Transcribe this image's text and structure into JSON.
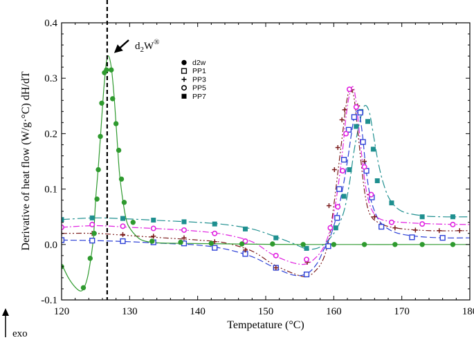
{
  "chart_data": {
    "type": "line",
    "xlabel": "Tempetature (°C)",
    "ylabel": "Derivative of heat flow (W/g·°C) dH/dT",
    "xlim": [
      120,
      180
    ],
    "ylim": [
      -0.1,
      0.4
    ],
    "xticks": [
      120,
      130,
      140,
      150,
      160,
      170,
      180
    ],
    "yticks": [
      -0.1,
      0.0,
      0.1,
      0.2,
      0.3,
      0.4
    ],
    "ytick_labels": [
      "-0.1",
      "0.0",
      "0.1",
      "0.2",
      "0.3",
      "0.4"
    ],
    "legend_position": "top-center",
    "vertical_reference_x": 126.7,
    "annotation": {
      "text_main": "d",
      "text_sub": "2",
      "text_rest": "W",
      "text_sup": "®",
      "points_to_x": 126.7,
      "points_to_y": 0.338
    },
    "corner_label": "exo",
    "series": [
      {
        "name": "d2w",
        "color": "#2e9a2e",
        "marker": "filled-circle",
        "dash": "solid",
        "curve": [
          [
            120,
            -0.035
          ],
          [
            121,
            -0.06
          ],
          [
            122,
            -0.077
          ],
          [
            122.8,
            -0.084
          ],
          [
            123.3,
            -0.078
          ],
          [
            123.8,
            -0.06
          ],
          [
            124.3,
            -0.025
          ],
          [
            124.7,
            0.015
          ],
          [
            125,
            0.08
          ],
          [
            125.4,
            0.14
          ],
          [
            125.8,
            0.21
          ],
          [
            126.2,
            0.28
          ],
          [
            126.6,
            0.33
          ],
          [
            126.9,
            0.34
          ],
          [
            127.3,
            0.32
          ],
          [
            127.7,
            0.27
          ],
          [
            128.1,
            0.2
          ],
          [
            128.5,
            0.13
          ],
          [
            129,
            0.08
          ],
          [
            129.5,
            0.045
          ],
          [
            130,
            0.03
          ],
          [
            131,
            0.015
          ],
          [
            132,
            0.007
          ],
          [
            134,
            0.003
          ],
          [
            138,
            0.002
          ],
          [
            145,
            0.001
          ],
          [
            155,
            0.0
          ],
          [
            180,
            0.0
          ]
        ],
        "markers": [
          [
            120,
            -0.04
          ],
          [
            123.2,
            -0.078
          ],
          [
            124.2,
            -0.025
          ],
          [
            124.8,
            0.02
          ],
          [
            125.2,
            0.082
          ],
          [
            125.4,
            0.135
          ],
          [
            125.7,
            0.195
          ],
          [
            125.9,
            0.255
          ],
          [
            126.3,
            0.31
          ],
          [
            126.6,
            0.315
          ],
          [
            127.3,
            0.315
          ],
          [
            127.5,
            0.263
          ],
          [
            128,
            0.218
          ],
          [
            128.4,
            0.17
          ],
          [
            128.8,
            0.118
          ],
          [
            129.2,
            0.076
          ],
          [
            130.5,
            0.04
          ],
          [
            133.3,
            0.006
          ],
          [
            137.5,
            0.004
          ],
          [
            142,
            0.002
          ],
          [
            146.5,
            0.001
          ],
          [
            151,
            0.001
          ],
          [
            155.5,
            0.0
          ],
          [
            160,
            0.0
          ],
          [
            164.5,
            0.0
          ],
          [
            169,
            0.0
          ],
          [
            173,
            0.0
          ],
          [
            177.5,
            0.0
          ]
        ]
      },
      {
        "name": "PP1",
        "color": "#2b3fd6",
        "marker": "open-square",
        "dash": "long-dash",
        "curve": [
          [
            120,
            0.008
          ],
          [
            125,
            0.007
          ],
          [
            130,
            0.005
          ],
          [
            135,
            0.002
          ],
          [
            140,
            -0.001
          ],
          [
            144,
            -0.008
          ],
          [
            148,
            -0.022
          ],
          [
            151,
            -0.04
          ],
          [
            154,
            -0.055
          ],
          [
            156,
            -0.053
          ],
          [
            157.5,
            -0.035
          ],
          [
            158.5,
            -0.01
          ],
          [
            159.5,
            0.015
          ],
          [
            160.5,
            0.055
          ],
          [
            161.3,
            0.1
          ],
          [
            162,
            0.15
          ],
          [
            162.6,
            0.2
          ],
          [
            163.1,
            0.235
          ],
          [
            163.7,
            0.238
          ],
          [
            164.2,
            0.2
          ],
          [
            164.7,
            0.14
          ],
          [
            165.3,
            0.09
          ],
          [
            166,
            0.06
          ],
          [
            167,
            0.038
          ],
          [
            169,
            0.022
          ],
          [
            172,
            0.015
          ],
          [
            176,
            0.012
          ],
          [
            180,
            0.012
          ]
        ],
        "markers": [
          [
            120,
            0.008
          ],
          [
            124.5,
            0.007
          ],
          [
            129,
            0.006
          ],
          [
            133.5,
            0.004
          ],
          [
            138,
            0.002
          ],
          [
            142.5,
            -0.006
          ],
          [
            147,
            -0.017
          ],
          [
            151.5,
            -0.042
          ],
          [
            156,
            -0.054
          ],
          [
            159.2,
            -0.003
          ],
          [
            160.5,
            0.048
          ],
          [
            160.8,
            0.1
          ],
          [
            161.5,
            0.153
          ],
          [
            162.2,
            0.207
          ],
          [
            163,
            0.23
          ],
          [
            163.9,
            0.238
          ],
          [
            164.3,
            0.185
          ],
          [
            164.8,
            0.133
          ],
          [
            165.6,
            0.085
          ],
          [
            167,
            0.032
          ],
          [
            171.5,
            0.013
          ],
          [
            176,
            0.012
          ]
        ]
      },
      {
        "name": "PP3",
        "color": "#7a1a1a",
        "marker": "plus",
        "dash": "dash-dot-dot",
        "curve": [
          [
            120,
            0.02
          ],
          [
            125,
            0.02
          ],
          [
            130,
            0.016
          ],
          [
            135,
            0.012
          ],
          [
            140,
            0.008
          ],
          [
            144,
            0.003
          ],
          [
            148,
            -0.012
          ],
          [
            151,
            -0.035
          ],
          [
            154,
            -0.052
          ],
          [
            156,
            -0.058
          ],
          [
            157.5,
            -0.045
          ],
          [
            158.5,
            -0.025
          ],
          [
            159.3,
            0.01
          ],
          [
            160,
            0.07
          ],
          [
            160.7,
            0.14
          ],
          [
            161.3,
            0.2
          ],
          [
            161.8,
            0.25
          ],
          [
            162.3,
            0.279
          ],
          [
            162.9,
            0.27
          ],
          [
            163.4,
            0.22
          ],
          [
            164,
            0.15
          ],
          [
            164.6,
            0.09
          ],
          [
            165.3,
            0.055
          ],
          [
            166.5,
            0.04
          ],
          [
            169,
            0.03
          ],
          [
            174,
            0.025
          ],
          [
            180,
            0.025
          ]
        ],
        "markers": [
          [
            120,
            0.02
          ],
          [
            124.5,
            0.02
          ],
          [
            129,
            0.018
          ],
          [
            133.5,
            0.015
          ],
          [
            138,
            0.012
          ],
          [
            142.5,
            0.005
          ],
          [
            147,
            -0.01
          ],
          [
            151.5,
            -0.042
          ],
          [
            156.1,
            -0.032
          ],
          [
            159.3,
            0.07
          ],
          [
            160.1,
            0.135
          ],
          [
            160.6,
            0.175
          ],
          [
            161.2,
            0.225
          ],
          [
            161.6,
            0.243
          ],
          [
            162.6,
            0.279
          ],
          [
            163.5,
            0.25
          ],
          [
            164.5,
            0.15
          ],
          [
            165.3,
            0.09
          ],
          [
            166,
            0.05
          ],
          [
            169,
            0.03
          ],
          [
            172,
            0.026
          ],
          [
            175.5,
            0.025
          ],
          [
            178.5,
            0.025
          ]
        ]
      },
      {
        "name": "PP5",
        "color": "#e020e0",
        "marker": "open-circle",
        "dash": "dash-dot",
        "curve": [
          [
            120,
            0.031
          ],
          [
            125,
            0.034
          ],
          [
            130,
            0.031
          ],
          [
            135,
            0.028
          ],
          [
            140,
            0.024
          ],
          [
            144,
            0.018
          ],
          [
            148,
            0.005
          ],
          [
            151,
            -0.018
          ],
          [
            154,
            -0.033
          ],
          [
            156,
            -0.035
          ],
          [
            157.5,
            -0.022
          ],
          [
            158.5,
            -0.005
          ],
          [
            159.3,
            0.02
          ],
          [
            160,
            0.055
          ],
          [
            160.7,
            0.11
          ],
          [
            161.3,
            0.17
          ],
          [
            161.8,
            0.23
          ],
          [
            162.3,
            0.27
          ],
          [
            162.8,
            0.285
          ],
          [
            163.2,
            0.265
          ],
          [
            163.7,
            0.21
          ],
          [
            164.3,
            0.14
          ],
          [
            164.9,
            0.09
          ],
          [
            165.7,
            0.06
          ],
          [
            167,
            0.045
          ],
          [
            170,
            0.04
          ],
          [
            175,
            0.037
          ],
          [
            180,
            0.036
          ]
        ],
        "markers": [
          [
            120,
            0.031
          ],
          [
            124.5,
            0.036
          ],
          [
            129,
            0.033
          ],
          [
            133.5,
            0.029
          ],
          [
            138,
            0.026
          ],
          [
            142.5,
            0.02
          ],
          [
            147,
            0.006
          ],
          [
            151.5,
            -0.02
          ],
          [
            156,
            -0.027
          ],
          [
            159.5,
            0.03
          ],
          [
            160.6,
            0.068
          ],
          [
            161.3,
            0.133
          ],
          [
            161.8,
            0.2
          ],
          [
            162.3,
            0.28
          ],
          [
            163.3,
            0.248
          ],
          [
            164.5,
            0.14
          ],
          [
            165.5,
            0.09
          ],
          [
            168.5,
            0.04
          ],
          [
            173,
            0.037
          ],
          [
            177.5,
            0.036
          ]
        ]
      },
      {
        "name": "PP7",
        "color": "#1e8f8f",
        "marker": "filled-square",
        "dash": "long-dash-dot",
        "curve": [
          [
            120,
            0.045
          ],
          [
            125,
            0.048
          ],
          [
            130,
            0.046
          ],
          [
            135,
            0.043
          ],
          [
            140,
            0.04
          ],
          [
            144,
            0.036
          ],
          [
            148,
            0.028
          ],
          [
            151,
            0.016
          ],
          [
            154,
            0.002
          ],
          [
            156,
            -0.008
          ],
          [
            157.5,
            -0.007
          ],
          [
            158.5,
            0.0
          ],
          [
            159.5,
            0.012
          ],
          [
            160.5,
            0.03
          ],
          [
            161.5,
            0.06
          ],
          [
            162.3,
            0.11
          ],
          [
            163,
            0.17
          ],
          [
            163.8,
            0.22
          ],
          [
            164.5,
            0.25
          ],
          [
            165.2,
            0.24
          ],
          [
            165.8,
            0.2
          ],
          [
            166.5,
            0.15
          ],
          [
            167.3,
            0.11
          ],
          [
            168.3,
            0.08
          ],
          [
            170,
            0.06
          ],
          [
            173,
            0.052
          ],
          [
            176,
            0.05
          ],
          [
            180,
            0.05
          ]
        ],
        "markers": [
          [
            120,
            0.045
          ],
          [
            124.5,
            0.048
          ],
          [
            129,
            0.047
          ],
          [
            133.5,
            0.044
          ],
          [
            138,
            0.041
          ],
          [
            142.5,
            0.037
          ],
          [
            147,
            0.028
          ],
          [
            151.5,
            0.012
          ],
          [
            156,
            -0.007
          ],
          [
            160.3,
            0.03
          ],
          [
            161.5,
            0.087
          ],
          [
            162.3,
            0.135
          ],
          [
            163.3,
            0.213
          ],
          [
            164,
            0.24
          ],
          [
            165,
            0.222
          ],
          [
            165.8,
            0.172
          ],
          [
            166.4,
            0.115
          ],
          [
            168.5,
            0.075
          ],
          [
            173,
            0.05
          ],
          [
            177.5,
            0.05
          ]
        ]
      }
    ]
  }
}
